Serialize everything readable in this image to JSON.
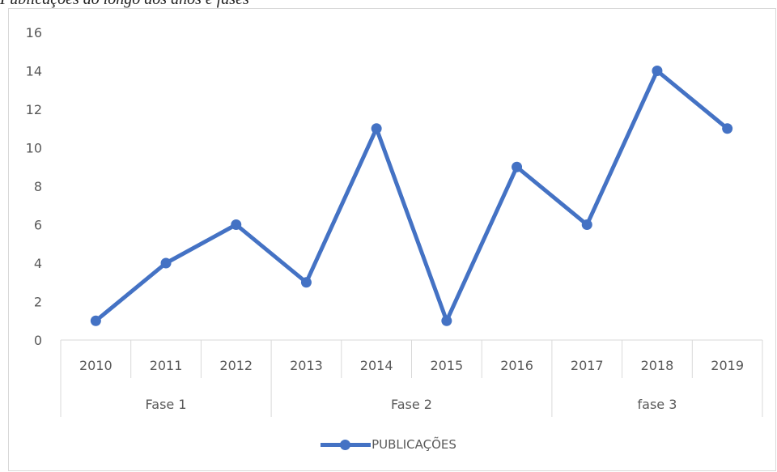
{
  "caption": "Publicações ao longo dos anos e fases",
  "colors": {
    "series": "#4472c4",
    "grid": "#d9d9d9",
    "text": "#595959"
  },
  "chart_data": {
    "type": "line",
    "categories": [
      "2010",
      "2011",
      "2012",
      "2013",
      "2014",
      "2015",
      "2016",
      "2017",
      "2018",
      "2019"
    ],
    "groups": [
      {
        "label": "Fase 1",
        "categories": [
          "2010",
          "2011",
          "2012"
        ]
      },
      {
        "label": "Fase 2",
        "categories": [
          "2013",
          "2014",
          "2015",
          "2016"
        ]
      },
      {
        "label": "fase 3",
        "categories": [
          "2017",
          "2018",
          "2019"
        ]
      }
    ],
    "series": [
      {
        "name": "PUBLICAÇÕES",
        "values": [
          1,
          4,
          6,
          3,
          11,
          1,
          9,
          6,
          14,
          11
        ]
      }
    ],
    "ylim": [
      0,
      16
    ],
    "yticks": [
      0,
      2,
      4,
      6,
      8,
      10,
      12,
      14,
      16
    ],
    "grid": false,
    "legend": "bottom",
    "markers": true
  }
}
